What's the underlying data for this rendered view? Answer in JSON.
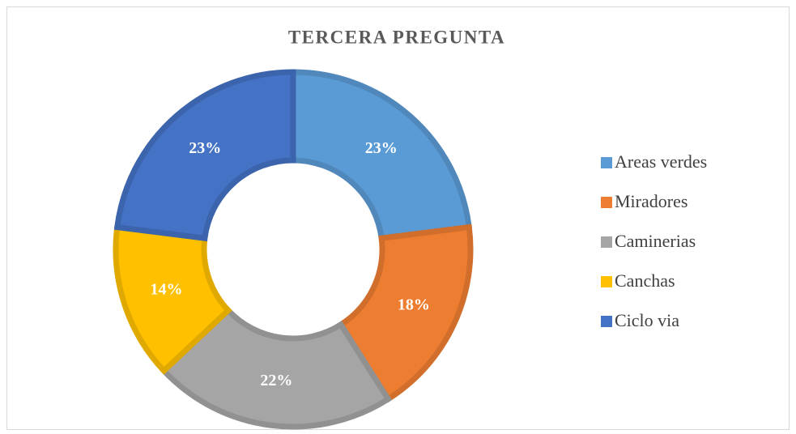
{
  "chart_data": {
    "type": "donut",
    "title": "TERCERA PREGUNTA",
    "categories": [
      "Areas verdes",
      "Miradores",
      "Caminerias",
      "Canchas",
      "Ciclo via"
    ],
    "values": [
      23,
      18,
      22,
      14,
      23
    ],
    "value_labels": [
      "23%",
      "18%",
      "22%",
      "14%",
      "23%"
    ],
    "colors": [
      "#5b9bd5",
      "#ed7d31",
      "#a5a5a5",
      "#ffc000",
      "#4472c4"
    ],
    "legend": "right"
  }
}
